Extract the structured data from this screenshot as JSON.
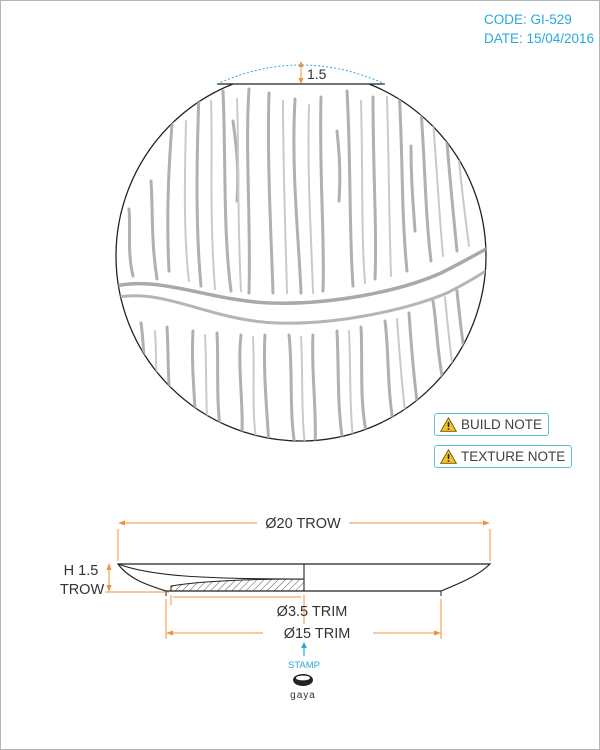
{
  "header": {
    "code": "CODE: GI-529",
    "date": "DATE: 15/04/2016"
  },
  "notes": {
    "build_note": "BUILD NOTE",
    "texture_note": "TEXTURE NOTE"
  },
  "dimensions": {
    "rim_depth": "1.5",
    "outer_diameter": "Ø20 TROW",
    "height_line1": "H 1.5",
    "height_line2": "TROW",
    "inner_trim": "Ø3.5 TRIM",
    "base_trim": "Ø15 TRIM"
  },
  "stamp": {
    "label": "STAMP",
    "brand": "gaya"
  },
  "colors": {
    "accent": "#29a9dd",
    "dimension_line": "#f0903c",
    "note_border": "#5fc1cf",
    "warning": "#f5c518"
  },
  "icons": [
    "warning-icon",
    "stamp-arrow-icon",
    "gaya-logo"
  ]
}
